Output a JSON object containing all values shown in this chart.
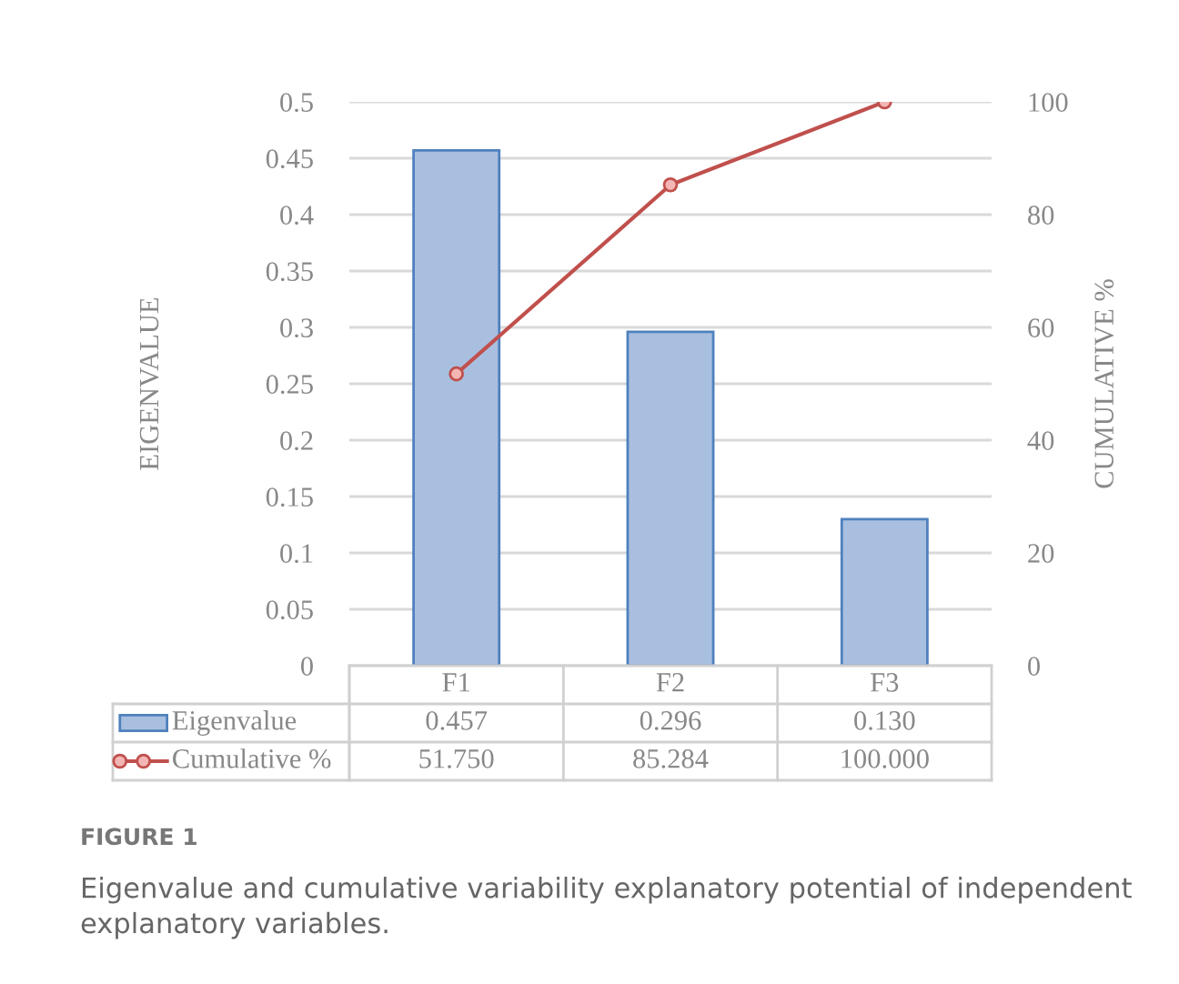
{
  "chart_data": {
    "type": "bar",
    "categories": [
      "F1",
      "F2",
      "F3"
    ],
    "ylabel": "EIGENVALUE",
    "y2label": "CUMULATIVE %",
    "series": [
      {
        "name": "Eigenvalue",
        "color": "#a9bfe0",
        "values": [
          0.457,
          0.296,
          0.13
        ],
        "value_labels": [
          "0.457",
          "0.296",
          "0.130"
        ]
      },
      {
        "name": "Cumulative %",
        "type": "line",
        "axis": "y2",
        "color": "#c0504d",
        "marker": "circle",
        "values": [
          51.75,
          85.284,
          100.0
        ],
        "value_labels": [
          "51.750",
          "85.284",
          "100.000"
        ]
      }
    ],
    "ylim": [
      0,
      0.5
    ],
    "yticks": [
      0,
      0.05,
      0.1,
      0.15,
      0.2,
      0.25,
      0.3,
      0.35,
      0.4,
      0.45,
      0.5
    ],
    "y2lim": [
      0,
      100
    ],
    "y2ticks": [
      0,
      20,
      40,
      60,
      80,
      100
    ],
    "grid": "y",
    "legend": "bottom",
    "annotations": [
      "FIGURE 1",
      "Eigenvalue and cumulative variability explanatory potential of independent explanatory variables."
    ]
  }
}
